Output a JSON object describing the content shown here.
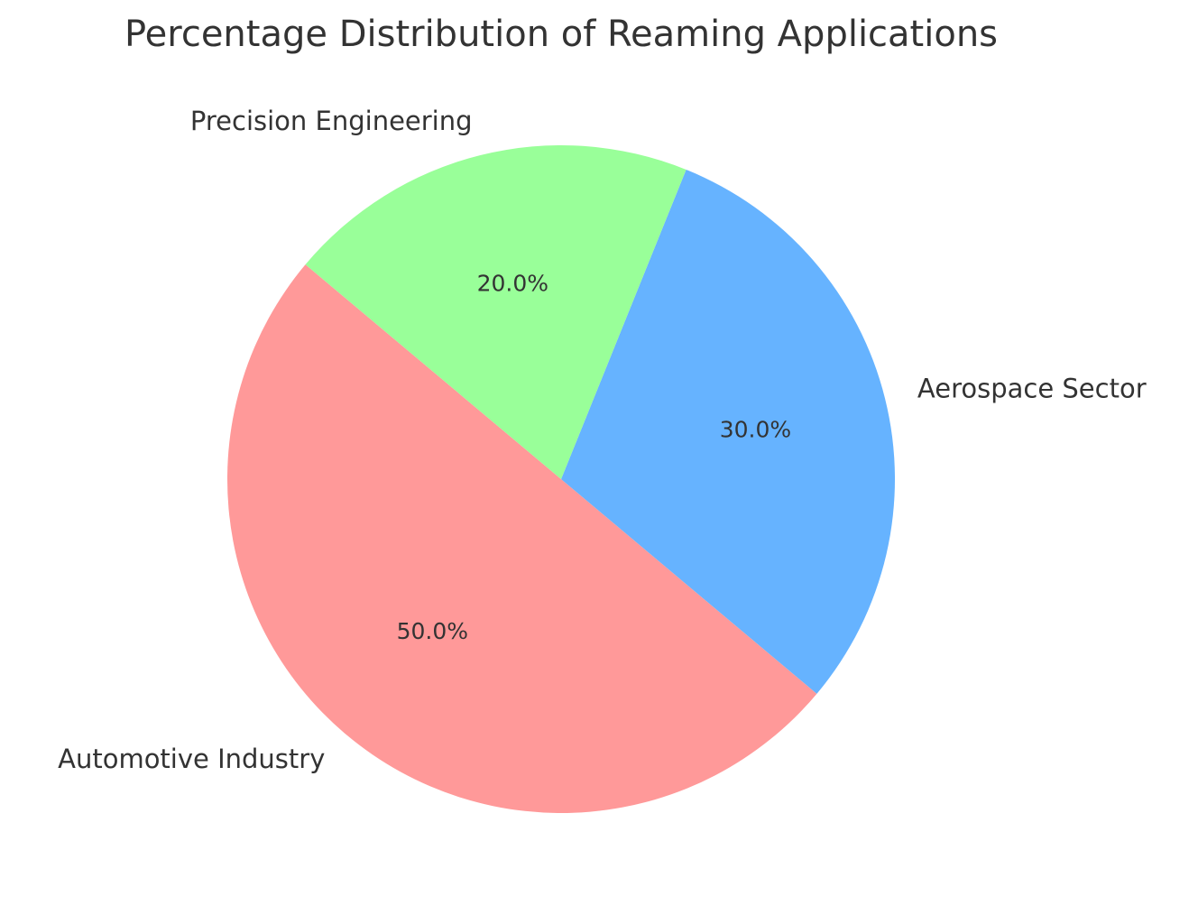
{
  "chart_data": {
    "type": "pie",
    "title": "Percentage Distribution of Reaming Applications",
    "categories": [
      "Automotive Industry",
      "Aerospace Sector",
      "Precision Engineering"
    ],
    "values": [
      50,
      30,
      20
    ],
    "value_labels": [
      "50.0%",
      "30.0%",
      "20.0%"
    ],
    "colors": [
      "#ff9999",
      "#66b3ff",
      "#99ff99"
    ]
  }
}
